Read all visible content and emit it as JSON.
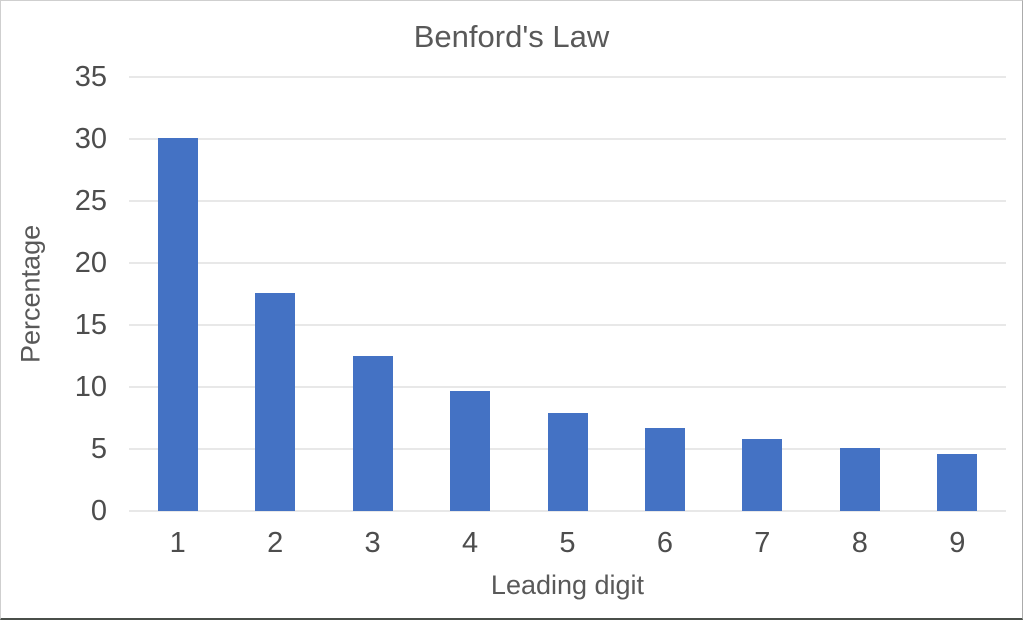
{
  "chart_data": {
    "type": "bar",
    "title": "Benford's Law",
    "xlabel": "Leading digit",
    "ylabel": "Percentage",
    "categories": [
      "1",
      "2",
      "3",
      "4",
      "5",
      "6",
      "7",
      "8",
      "9"
    ],
    "values": [
      30.1,
      17.6,
      12.5,
      9.7,
      7.9,
      6.7,
      5.8,
      5.1,
      4.6
    ],
    "ylim": [
      0,
      35
    ],
    "yticks": [
      0,
      5,
      10,
      15,
      20,
      25,
      30,
      35
    ],
    "grid": true,
    "legend_position": "none",
    "bar_color": "#4472c4",
    "gridline_color": "#e8e8e8",
    "title_color": "#595959",
    "tick_label_color": "#4d4d4d"
  }
}
